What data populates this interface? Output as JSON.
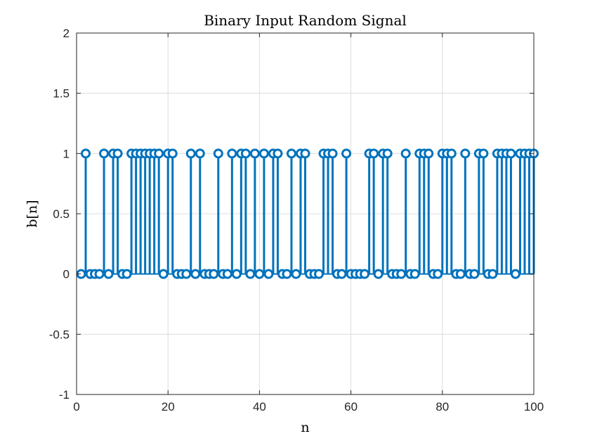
{
  "chart_data": {
    "type": "stem",
    "title": "Binary Input Random Signal",
    "xlabel": "n",
    "ylabel": "b[n]",
    "xlim": [
      0,
      100
    ],
    "ylim": [
      -1,
      2
    ],
    "xticks": [
      "0",
      "20",
      "40",
      "60",
      "80",
      "100"
    ],
    "yticks": [
      "-1",
      "-0.5",
      "0",
      "0.5",
      "1",
      "1.5",
      "2"
    ],
    "grid": true,
    "series": [
      {
        "color": "#0072BD",
        "x": [
          1,
          2,
          3,
          4,
          5,
          6,
          7,
          8,
          9,
          10,
          11,
          12,
          13,
          14,
          15,
          16,
          17,
          18,
          19,
          20,
          21,
          22,
          23,
          24,
          25,
          26,
          27,
          28,
          29,
          30,
          31,
          32,
          33,
          34,
          35,
          36,
          37,
          38,
          39,
          40,
          41,
          42,
          43,
          44,
          45,
          46,
          47,
          48,
          49,
          50,
          51,
          52,
          53,
          54,
          55,
          56,
          57,
          58,
          59,
          60,
          61,
          62,
          63,
          64,
          65,
          66,
          67,
          68,
          69,
          70,
          71,
          72,
          73,
          74,
          75,
          76,
          77,
          78,
          79,
          80,
          81,
          82,
          83,
          84,
          85,
          86,
          87,
          88,
          89,
          90,
          91,
          92,
          93,
          94,
          95,
          96,
          97,
          98,
          99,
          100
        ],
        "y": [
          0,
          1,
          0,
          0,
          0,
          1,
          0,
          1,
          1,
          0,
          0,
          1,
          1,
          1,
          1,
          1,
          1,
          1,
          0,
          1,
          1,
          0,
          0,
          0,
          1,
          0,
          1,
          0,
          0,
          0,
          1,
          0,
          0,
          1,
          0,
          1,
          1,
          0,
          1,
          0,
          1,
          0,
          1,
          1,
          0,
          0,
          1,
          0,
          1,
          1,
          0,
          0,
          0,
          1,
          1,
          1,
          0,
          0,
          1,
          0,
          0,
          0,
          0,
          1,
          1,
          0,
          1,
          1,
          0,
          0,
          0,
          1,
          0,
          0,
          1,
          1,
          1,
          0,
          0,
          1,
          1,
          1,
          0,
          0,
          1,
          0,
          0,
          1,
          1,
          0,
          0,
          1,
          1,
          1,
          1,
          0,
          1,
          1,
          1,
          1
        ]
      }
    ]
  }
}
